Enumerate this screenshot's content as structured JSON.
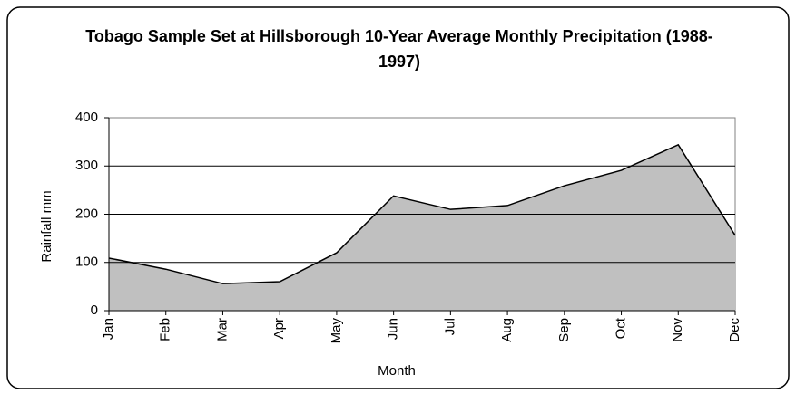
{
  "chart_data": {
    "type": "area",
    "title": "Tobago Sample Set at Hillsborough 10-Year Average Monthly Precipitation (1988-1997)",
    "x_label": "Month",
    "y_label": "Rainfall mm",
    "categories": [
      "Jan",
      "Feb",
      "Mar",
      "Apr",
      "May",
      "Jun",
      "Jul",
      "Aug",
      "Sep",
      "Oct",
      "Nov",
      "Dec"
    ],
    "series": [
      {
        "name": "Rainfall",
        "color": "#c0c0c0",
        "values": [
          109,
          86,
          56,
          60,
          120,
          238,
          210,
          218,
          259,
          291,
          344,
          156
        ]
      }
    ],
    "ylim": [
      0,
      400
    ],
    "yticks": [
      0,
      100,
      200,
      300,
      400
    ],
    "grid": true
  }
}
